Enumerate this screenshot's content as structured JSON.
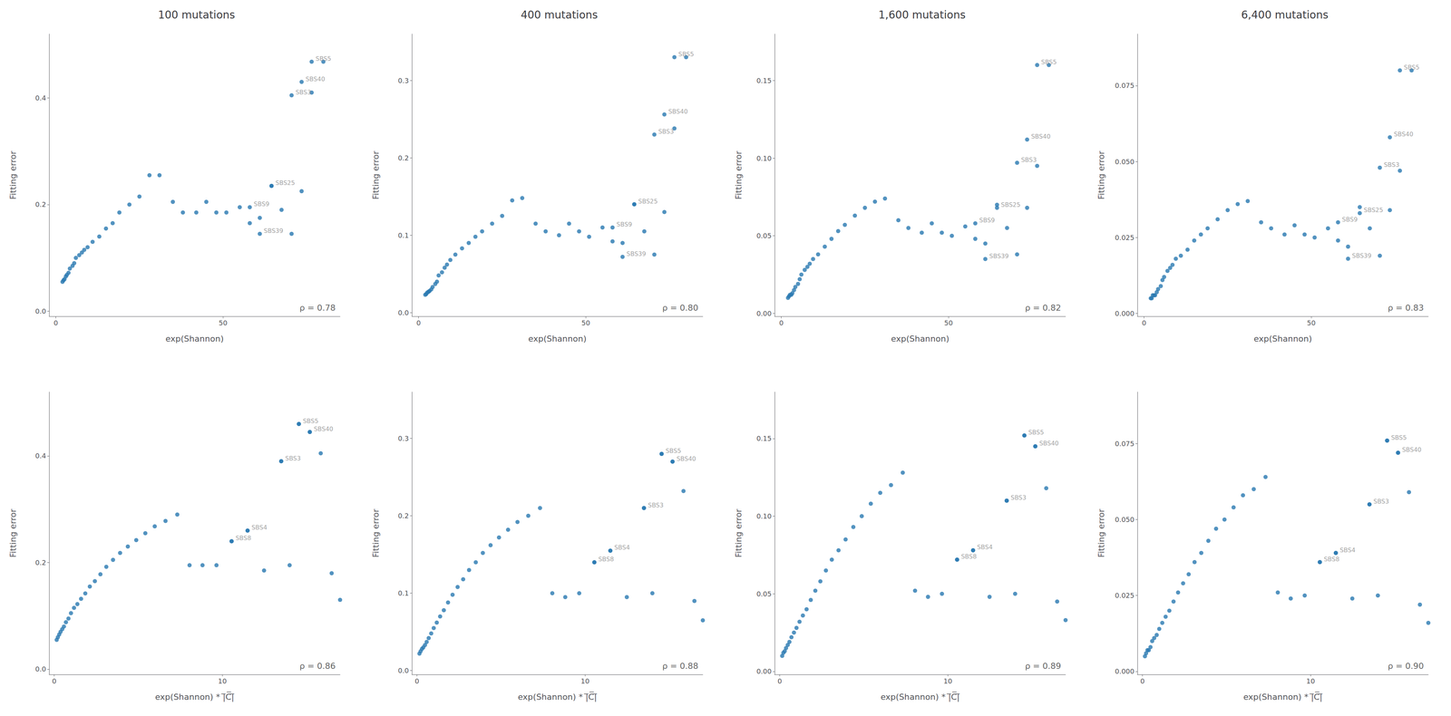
{
  "chart_data": [
    {
      "type": "scatter",
      "title": "100 mutations",
      "xlabel": "exp(Shannon)",
      "ylabel": "Fitting error",
      "x": [
        2.0,
        2.3,
        2.6,
        3.0,
        3.3,
        3.8,
        4.2,
        5.0,
        5.5,
        6.0,
        7.0,
        7.8,
        8.5,
        9.5,
        11.0,
        13.0,
        15.0,
        17.0,
        19.0,
        22.0,
        25.0,
        28.0,
        31.0,
        35.0,
        38.0,
        42.0,
        45.0,
        48.0,
        51.0,
        55.0,
        58.0,
        61.0,
        64.5,
        67.5,
        70.5,
        73.5,
        76.5,
        80.0
      ],
      "values": [
        0.055,
        0.058,
        0.06,
        0.065,
        0.068,
        0.072,
        0.08,
        0.085,
        0.09,
        0.1,
        0.105,
        0.11,
        0.115,
        0.12,
        0.13,
        0.14,
        0.155,
        0.165,
        0.185,
        0.2,
        0.215,
        0.255,
        0.255,
        0.205,
        0.185,
        0.185,
        0.205,
        0.185,
        0.185,
        0.195,
        0.165,
        0.175,
        0.235,
        0.19,
        0.145,
        0.225,
        0.41,
        0.468
      ],
      "color": "#2878b0",
      "xlim": [
        -2,
        85
      ],
      "ylim": [
        -0.01,
        0.52
      ],
      "xticks": [
        0,
        50
      ],
      "yticks": [
        {
          "value": 0.0,
          "label": "0.0"
        },
        0.2,
        0.4
      ],
      "grid": false,
      "annotations": [
        {
          "text": "SBS5",
          "x": 76.5,
          "y": 0.468
        },
        {
          "text": "SBS40",
          "x": 73.5,
          "y": 0.43
        },
        {
          "text": "SBS3",
          "x": 70.5,
          "y": 0.405
        },
        {
          "text": "SBS25",
          "x": 64.5,
          "y": 0.235
        },
        {
          "text": "SBS9",
          "x": 58.0,
          "y": 0.195
        },
        {
          "text": "SBS39",
          "x": 61.0,
          "y": 0.145
        },
        {
          "text": "ρ = 0.78"
        }
      ]
    },
    {
      "type": "scatter",
      "title": "400 mutations",
      "xlabel": "exp(Shannon)",
      "ylabel": "Fitting error",
      "x": [
        2.0,
        2.3,
        2.6,
        3.0,
        3.3,
        3.8,
        4.2,
        5.0,
        5.5,
        6.0,
        7.0,
        7.8,
        8.5,
        9.5,
        11.0,
        13.0,
        15.0,
        17.0,
        19.0,
        22.0,
        25.0,
        28.0,
        31.0,
        35.0,
        38.0,
        42.0,
        45.0,
        48.0,
        51.0,
        55.0,
        58.0,
        61.0,
        64.5,
        67.5,
        70.5,
        73.5,
        76.5,
        80.0
      ],
      "values": [
        0.023,
        0.024,
        0.026,
        0.027,
        0.028,
        0.03,
        0.033,
        0.037,
        0.04,
        0.048,
        0.052,
        0.058,
        0.062,
        0.068,
        0.075,
        0.083,
        0.09,
        0.098,
        0.105,
        0.115,
        0.125,
        0.145,
        0.148,
        0.115,
        0.105,
        0.1,
        0.115,
        0.105,
        0.098,
        0.11,
        0.092,
        0.09,
        0.14,
        0.105,
        0.075,
        0.13,
        0.238,
        0.33
      ],
      "color": "#2878b0",
      "xlim": [
        -2,
        85
      ],
      "ylim": [
        -0.005,
        0.36
      ],
      "xticks": [
        0,
        50
      ],
      "yticks": [
        {
          "value": 0.0,
          "label": "0.0"
        },
        0.1,
        0.2,
        0.3
      ],
      "grid": false,
      "annotations": [
        {
          "text": "SBS5",
          "x": 76.5,
          "y": 0.33
        },
        {
          "text": "SBS40",
          "x": 73.5,
          "y": 0.256
        },
        {
          "text": "SBS3",
          "x": 70.5,
          "y": 0.23
        },
        {
          "text": "SBS25",
          "x": 64.5,
          "y": 0.14
        },
        {
          "text": "SBS9",
          "x": 58.0,
          "y": 0.11
        },
        {
          "text": "SBS39",
          "x": 61.0,
          "y": 0.072
        },
        {
          "text": "ρ = 0.80"
        }
      ]
    },
    {
      "type": "scatter",
      "title": "1,600 mutations",
      "xlabel": "exp(Shannon)",
      "ylabel": "Fitting error",
      "x": [
        2.0,
        2.3,
        2.6,
        3.0,
        3.3,
        3.8,
        4.2,
        5.0,
        5.5,
        6.0,
        7.0,
        7.8,
        8.5,
        9.5,
        11.0,
        13.0,
        15.0,
        17.0,
        19.0,
        22.0,
        25.0,
        28.0,
        31.0,
        35.0,
        38.0,
        42.0,
        45.0,
        48.0,
        51.0,
        55.0,
        58.0,
        61.0,
        64.5,
        67.5,
        70.5,
        73.5,
        76.5,
        80.0
      ],
      "values": [
        0.01,
        0.011,
        0.012,
        0.012,
        0.013,
        0.015,
        0.017,
        0.019,
        0.022,
        0.025,
        0.028,
        0.03,
        0.032,
        0.035,
        0.038,
        0.043,
        0.048,
        0.053,
        0.057,
        0.063,
        0.068,
        0.072,
        0.074,
        0.06,
        0.055,
        0.052,
        0.058,
        0.052,
        0.05,
        0.056,
        0.048,
        0.045,
        0.07,
        0.055,
        0.038,
        0.068,
        0.095,
        0.16
      ],
      "color": "#2878b0",
      "xlim": [
        -2,
        85
      ],
      "ylim": [
        -0.002,
        0.18
      ],
      "xticks": [
        0,
        50
      ],
      "yticks": [
        {
          "value": 0.0,
          "label": "0.00"
        },
        0.05,
        {
          "value": 0.1,
          "label": "0.10"
        },
        0.15
      ],
      "grid": false,
      "annotations": [
        {
          "text": "SBS5",
          "x": 76.5,
          "y": 0.16
        },
        {
          "text": "SBS40",
          "x": 73.5,
          "y": 0.112
        },
        {
          "text": "SBS3",
          "x": 70.5,
          "y": 0.097
        },
        {
          "text": "SBS25",
          "x": 64.5,
          "y": 0.068
        },
        {
          "text": "SBS9",
          "x": 58.0,
          "y": 0.058
        },
        {
          "text": "SBS39",
          "x": 61.0,
          "y": 0.035
        },
        {
          "text": "ρ = 0.82"
        }
      ]
    },
    {
      "type": "scatter",
      "title": "6,400 mutations",
      "xlabel": "exp(Shannon)",
      "ylabel": "Fitting error",
      "x": [
        2.0,
        2.3,
        2.6,
        3.0,
        3.3,
        3.8,
        4.2,
        5.0,
        5.5,
        6.0,
        7.0,
        7.8,
        8.5,
        9.5,
        11.0,
        13.0,
        15.0,
        17.0,
        19.0,
        22.0,
        25.0,
        28.0,
        31.0,
        35.0,
        38.0,
        42.0,
        45.0,
        48.0,
        51.0,
        55.0,
        58.0,
        61.0,
        64.5,
        67.5,
        70.5,
        73.5,
        76.5,
        80.0
      ],
      "values": [
        0.005,
        0.005,
        0.006,
        0.006,
        0.006,
        0.007,
        0.008,
        0.009,
        0.011,
        0.012,
        0.014,
        0.015,
        0.016,
        0.018,
        0.019,
        0.021,
        0.024,
        0.026,
        0.028,
        0.031,
        0.034,
        0.036,
        0.037,
        0.03,
        0.028,
        0.026,
        0.029,
        0.026,
        0.025,
        0.028,
        0.024,
        0.022,
        0.035,
        0.028,
        0.019,
        0.034,
        0.047,
        0.08
      ],
      "color": "#2878b0",
      "xlim": [
        -2,
        85
      ],
      "ylim": [
        -0.001,
        0.092
      ],
      "xticks": [
        0,
        50
      ],
      "yticks": [
        {
          "value": 0.0,
          "label": "0.000"
        },
        0.025,
        {
          "value": 0.05,
          "label": "0.050"
        },
        0.075
      ],
      "grid": false,
      "annotations": [
        {
          "text": "SBS5",
          "x": 76.5,
          "y": 0.08
        },
        {
          "text": "SBS40",
          "x": 73.5,
          "y": 0.058
        },
        {
          "text": "SBS3",
          "x": 70.5,
          "y": 0.048
        },
        {
          "text": "SBS25",
          "x": 64.5,
          "y": 0.033
        },
        {
          "text": "SBS9",
          "x": 58.0,
          "y": 0.03
        },
        {
          "text": "SBS39",
          "x": 61.0,
          "y": 0.018
        },
        {
          "text": "ρ = 0.83"
        }
      ]
    },
    {
      "type": "scatter",
      "xlabel": "exp(Shannon) * |̅C̅|̅",
      "ylabel": "Fitting error",
      "x": [
        0.15,
        0.22,
        0.3,
        0.38,
        0.48,
        0.58,
        0.7,
        0.85,
        1.0,
        1.18,
        1.38,
        1.6,
        1.85,
        2.12,
        2.42,
        2.75,
        3.1,
        3.5,
        3.92,
        4.38,
        4.88,
        5.42,
        5.98,
        6.62,
        7.32,
        8.05,
        8.82,
        9.65,
        10.55,
        11.5,
        12.48,
        13.5,
        14.0,
        14.55,
        15.2,
        15.85,
        16.5,
        17.0
      ],
      "values": [
        0.055,
        0.06,
        0.065,
        0.07,
        0.075,
        0.08,
        0.088,
        0.095,
        0.105,
        0.115,
        0.122,
        0.132,
        0.142,
        0.155,
        0.165,
        0.178,
        0.192,
        0.205,
        0.218,
        0.23,
        0.242,
        0.255,
        0.268,
        0.278,
        0.29,
        0.195,
        0.195,
        0.195,
        0.24,
        0.26,
        0.185,
        0.39,
        0.195,
        0.46,
        0.445,
        0.405,
        0.18,
        0.13
      ],
      "color": "#2878b0",
      "xlim": [
        -0.3,
        17
      ],
      "ylim": [
        -0.01,
        0.52
      ],
      "xticks": [
        0,
        10
      ],
      "yticks": [
        {
          "value": 0.0,
          "label": "0.0"
        },
        0.2,
        0.4
      ],
      "grid": false,
      "annotations": [
        {
          "text": "SBS5",
          "x": 14.55,
          "y": 0.46
        },
        {
          "text": "SBS40",
          "x": 15.2,
          "y": 0.445
        },
        {
          "text": "SBS3",
          "x": 13.5,
          "y": 0.39
        },
        {
          "text": "SBS4",
          "x": 11.5,
          "y": 0.26
        },
        {
          "text": "SBS8",
          "x": 10.55,
          "y": 0.24
        },
        {
          "text": "ρ = 0.86"
        }
      ]
    },
    {
      "type": "scatter",
      "xlabel": "exp(Shannon) * |̅C̅|̅",
      "ylabel": "Fitting error",
      "x": [
        0.15,
        0.22,
        0.3,
        0.38,
        0.48,
        0.58,
        0.7,
        0.85,
        1.0,
        1.18,
        1.38,
        1.6,
        1.85,
        2.12,
        2.42,
        2.75,
        3.1,
        3.5,
        3.92,
        4.38,
        4.88,
        5.42,
        5.98,
        6.62,
        7.32,
        8.05,
        8.82,
        9.65,
        10.55,
        11.5,
        12.48,
        13.5,
        14.0,
        14.55,
        15.2,
        15.85,
        16.5,
        17.0
      ],
      "values": [
        0.022,
        0.025,
        0.028,
        0.03,
        0.033,
        0.037,
        0.042,
        0.048,
        0.055,
        0.062,
        0.07,
        0.078,
        0.088,
        0.098,
        0.108,
        0.118,
        0.13,
        0.14,
        0.152,
        0.162,
        0.172,
        0.182,
        0.192,
        0.2,
        0.21,
        0.1,
        0.095,
        0.1,
        0.14,
        0.155,
        0.095,
        0.21,
        0.1,
        0.28,
        0.27,
        0.232,
        0.09,
        0.065
      ],
      "color": "#2878b0",
      "xlim": [
        -0.3,
        17
      ],
      "ylim": [
        -0.005,
        0.36
      ],
      "xticks": [
        0,
        10
      ],
      "yticks": [
        {
          "value": 0.0,
          "label": "0.0"
        },
        0.1,
        0.2,
        0.3
      ],
      "grid": false,
      "annotations": [
        {
          "text": "SBS5",
          "x": 14.55,
          "y": 0.28
        },
        {
          "text": "SBS40",
          "x": 15.2,
          "y": 0.27
        },
        {
          "text": "SBS3",
          "x": 13.5,
          "y": 0.21
        },
        {
          "text": "SBS4",
          "x": 11.5,
          "y": 0.155
        },
        {
          "text": "SBS8",
          "x": 10.55,
          "y": 0.14
        },
        {
          "text": "ρ = 0.88"
        }
      ]
    },
    {
      "type": "scatter",
      "xlabel": "exp(Shannon) * |̅C̅|̅",
      "ylabel": "Fitting error",
      "x": [
        0.15,
        0.22,
        0.3,
        0.38,
        0.48,
        0.58,
        0.7,
        0.85,
        1.0,
        1.18,
        1.38,
        1.6,
        1.85,
        2.12,
        2.42,
        2.75,
        3.1,
        3.5,
        3.92,
        4.38,
        4.88,
        5.42,
        5.98,
        6.62,
        7.32,
        8.05,
        8.82,
        9.65,
        10.55,
        11.5,
        12.48,
        13.5,
        14.0,
        14.55,
        15.2,
        15.85,
        16.5,
        17.0
      ],
      "values": [
        0.01,
        0.012,
        0.013,
        0.015,
        0.017,
        0.019,
        0.022,
        0.025,
        0.028,
        0.032,
        0.036,
        0.04,
        0.046,
        0.052,
        0.058,
        0.065,
        0.072,
        0.078,
        0.085,
        0.093,
        0.1,
        0.108,
        0.115,
        0.12,
        0.128,
        0.052,
        0.048,
        0.05,
        0.072,
        0.078,
        0.048,
        0.11,
        0.05,
        0.152,
        0.145,
        0.118,
        0.045,
        0.033
      ],
      "color": "#2878b0",
      "xlim": [
        -0.3,
        17
      ],
      "ylim": [
        -0.002,
        0.18
      ],
      "xticks": [
        0,
        10
      ],
      "yticks": [
        {
          "value": 0.0,
          "label": "0.00"
        },
        0.05,
        {
          "value": 0.1,
          "label": "0.10"
        },
        0.15
      ],
      "grid": false,
      "annotations": [
        {
          "text": "SBS5",
          "x": 14.55,
          "y": 0.152
        },
        {
          "text": "SBS40",
          "x": 15.2,
          "y": 0.145
        },
        {
          "text": "SBS3",
          "x": 13.5,
          "y": 0.11
        },
        {
          "text": "SBS4",
          "x": 11.5,
          "y": 0.078
        },
        {
          "text": "SBS8",
          "x": 10.55,
          "y": 0.072
        },
        {
          "text": "ρ = 0.89"
        }
      ]
    },
    {
      "type": "scatter",
      "xlabel": "exp(Shannon) * |̅C̅|̅",
      "ylabel": "Fitting error",
      "x": [
        0.15,
        0.22,
        0.3,
        0.38,
        0.48,
        0.58,
        0.7,
        0.85,
        1.0,
        1.18,
        1.38,
        1.6,
        1.85,
        2.12,
        2.42,
        2.75,
        3.1,
        3.5,
        3.92,
        4.38,
        4.88,
        5.42,
        5.98,
        6.62,
        7.32,
        8.05,
        8.82,
        9.65,
        10.55,
        11.5,
        12.48,
        13.5,
        14.0,
        14.55,
        15.2,
        15.85,
        16.5,
        17.0
      ],
      "values": [
        0.005,
        0.006,
        0.007,
        0.007,
        0.008,
        0.01,
        0.011,
        0.012,
        0.014,
        0.016,
        0.018,
        0.02,
        0.023,
        0.026,
        0.029,
        0.032,
        0.036,
        0.039,
        0.043,
        0.047,
        0.05,
        0.054,
        0.058,
        0.06,
        0.064,
        0.026,
        0.024,
        0.025,
        0.036,
        0.039,
        0.024,
        0.055,
        0.025,
        0.076,
        0.072,
        0.059,
        0.022,
        0.016
      ],
      "color": "#2878b0",
      "xlim": [
        -0.3,
        17
      ],
      "ylim": [
        -0.001,
        0.092
      ],
      "xticks": [
        0,
        10
      ],
      "yticks": [
        {
          "value": 0.0,
          "label": "0.000"
        },
        0.025,
        {
          "value": 0.05,
          "label": "0.050"
        },
        0.075
      ],
      "grid": false,
      "annotations": [
        {
          "text": "SBS5",
          "x": 14.55,
          "y": 0.076
        },
        {
          "text": "SBS40",
          "x": 15.2,
          "y": 0.072
        },
        {
          "text": "SBS3",
          "x": 13.5,
          "y": 0.055
        },
        {
          "text": "SBS4",
          "x": 11.5,
          "y": 0.039
        },
        {
          "text": "SBS8",
          "x": 10.55,
          "y": 0.036
        },
        {
          "text": "ρ = 0.90"
        }
      ]
    }
  ]
}
